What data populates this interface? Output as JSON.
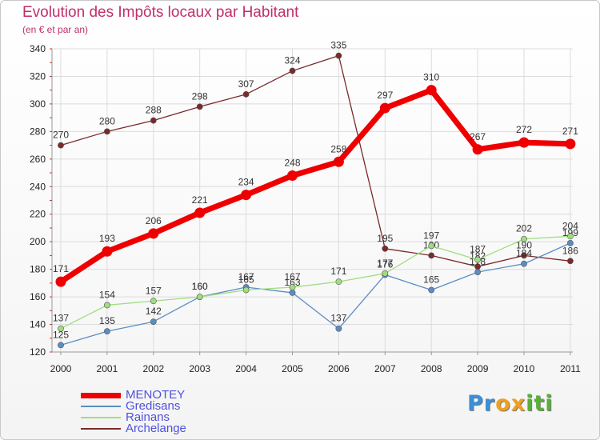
{
  "chart_data": {
    "type": "line",
    "title": "Evolution des Impôts locaux par Habitant",
    "subtitle": "(en € et par an)",
    "categories": [
      "2000",
      "2001",
      "2002",
      "2003",
      "2004",
      "2005",
      "2006",
      "2007",
      "2008",
      "2009",
      "2010",
      "2011"
    ],
    "ylim": [
      120,
      340
    ],
    "yticks": [
      120,
      140,
      160,
      180,
      200,
      220,
      240,
      260,
      280,
      300,
      320,
      340
    ],
    "grid": true,
    "legend_position": "bottom-left",
    "series": [
      {
        "name": "Archelange",
        "color": "#7a2a2a",
        "values": [
          270,
          280,
          288,
          298,
          307,
          324,
          335,
          195,
          190,
          182,
          190,
          186
        ]
      },
      {
        "name": "Gredisans",
        "color": "#5a8ec2",
        "values": [
          125,
          135,
          142,
          160,
          167,
          163,
          137,
          176,
          165,
          178,
          184,
          199
        ]
      },
      {
        "name": "Rainans",
        "color": "#a0dd80",
        "values": [
          137,
          154,
          157,
          160,
          165,
          167,
          171,
          177,
          197,
          187,
          202,
          204
        ]
      },
      {
        "name": "MENOTEY",
        "color": "#ee0000",
        "values": [
          171,
          193,
          206,
          221,
          234,
          248,
          258,
          297,
          310,
          267,
          272,
          271
        ]
      }
    ],
    "legend_order": [
      "MENOTEY",
      "Gredisans",
      "Rainans",
      "Archelange"
    ]
  },
  "logo": {
    "letters": [
      {
        "char": "P",
        "color": "#3a8fd8"
      },
      {
        "char": "r",
        "color": "#3a8fd8"
      },
      {
        "char": "o",
        "color": "#f0a020"
      },
      {
        "char": "x",
        "color": "#f0a020"
      },
      {
        "char": "i",
        "color": "#58b038"
      },
      {
        "char": "t",
        "color": "#58b038"
      },
      {
        "char": "i",
        "color": "#58b038"
      }
    ]
  }
}
